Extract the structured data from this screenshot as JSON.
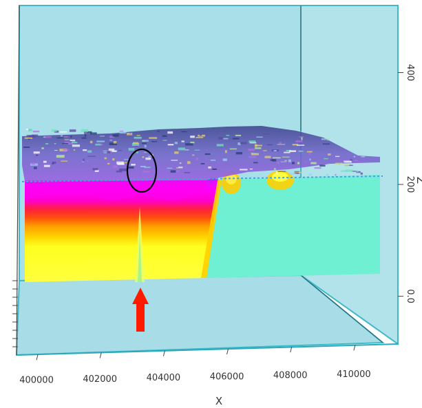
{
  "chart_data": {
    "type": "heatmap",
    "title": "",
    "xlabel": "X",
    "zlabel": "Z",
    "x_ticks": [
      "400000",
      "402000",
      "404000",
      "406000",
      "408000",
      "410000"
    ],
    "z_ticks": [
      "0.0",
      "200",
      "400"
    ],
    "x_range": [
      399500,
      411000
    ],
    "z_range": [
      -110,
      520
    ],
    "colors": {
      "box_face": "#a9dfe8",
      "box_edge": "#3fb9c9",
      "ground_plane": "#a8dde7",
      "high_top": "#ff00ff",
      "mid_high": "#ff3030",
      "mid": "#ff9a00",
      "low_mid": "#ffe000",
      "low": "#ffff30",
      "background_value": "#6ff0d2",
      "surface_clutter": "#8a70d0",
      "arrow": "#ff1a00",
      "highlight_circle": "#000000"
    },
    "annotations": {
      "circle_label": "",
      "arrow_label": ""
    }
  }
}
